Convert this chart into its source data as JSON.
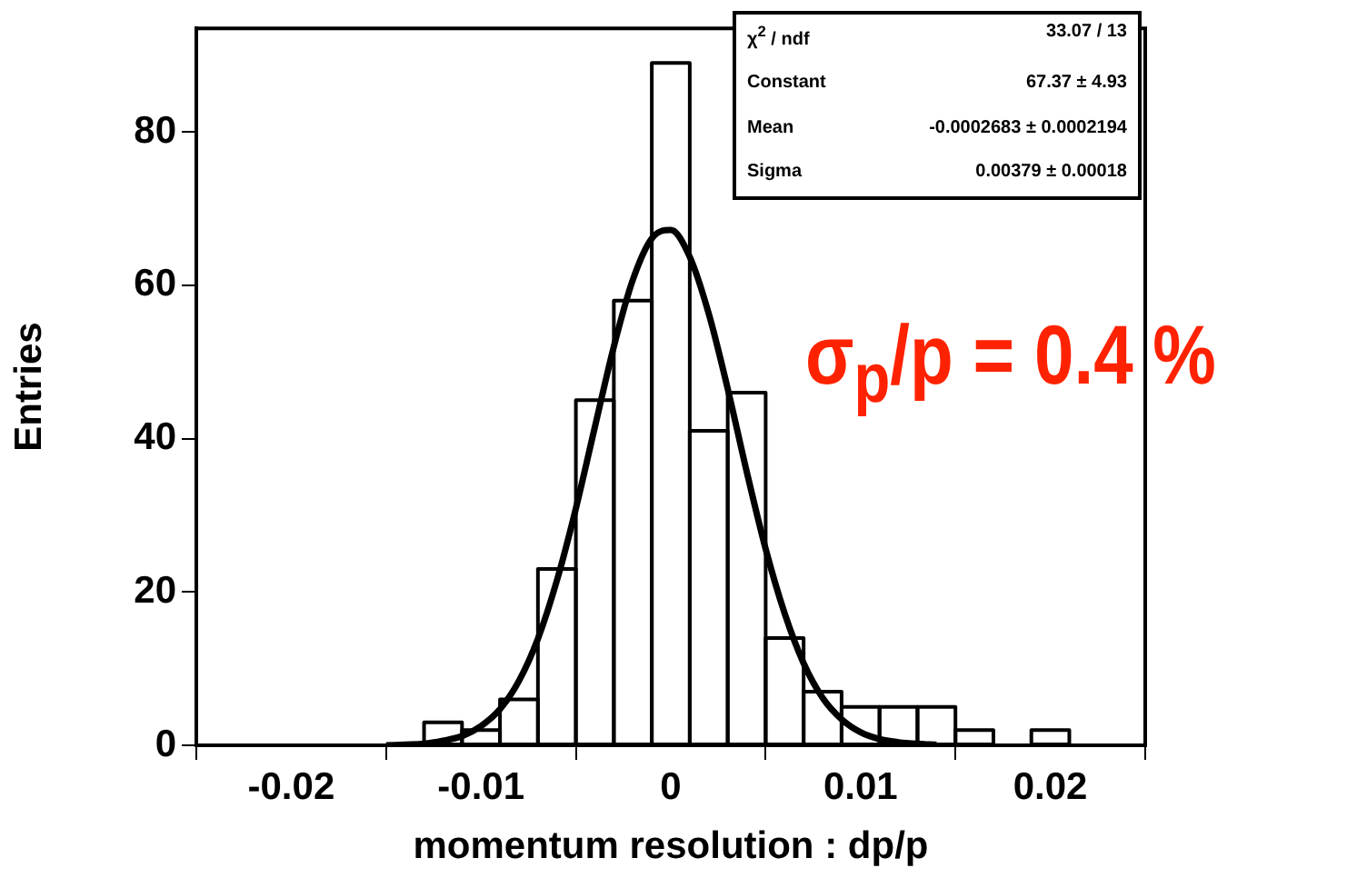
{
  "chart_data": {
    "type": "histogram",
    "xlabel": "momentum resolution : dp/p",
    "ylabel": "Entries",
    "xlim": [
      -0.025,
      0.025
    ],
    "xticks": [
      -0.02,
      -0.01,
      0,
      0.01,
      0.02
    ],
    "ylim": [
      0,
      93.5
    ],
    "yticks": [
      0,
      20,
      40,
      60,
      80
    ],
    "grid": false,
    "legend": false,
    "color": "#000000",
    "bins": [
      -0.025,
      -0.023,
      -0.021,
      -0.019,
      -0.017,
      -0.015,
      -0.013,
      -0.011,
      -0.009,
      -0.007,
      -0.005,
      -0.003,
      -0.001,
      0.001,
      0.003,
      0.005,
      0.007,
      0.009,
      0.011,
      0.013,
      0.015,
      0.017,
      0.019,
      0.021,
      0.023,
      0.025
    ],
    "values": [
      0,
      0,
      0,
      0,
      0,
      0,
      3,
      2,
      6,
      23,
      45,
      58,
      89,
      41,
      46,
      14,
      7,
      5,
      5,
      5,
      2,
      0,
      2,
      0,
      0
    ],
    "series": [
      {
        "type": "line",
        "color": "#000000",
        "x": [
          -0.015,
          -0.014,
          -0.013,
          -0.012,
          -0.011,
          -0.01,
          -0.009,
          -0.008,
          -0.007,
          -0.006,
          -0.005,
          -0.004,
          -0.003,
          -0.002,
          -0.001,
          0,
          0.001,
          0.002,
          0.003,
          0.004,
          0.005,
          0.006,
          0.007,
          0.008,
          0.009,
          0.01,
          0.011,
          0.012,
          0.013,
          0.014
        ],
        "values": [
          0,
          0.1,
          0.2,
          0.6,
          1.2,
          2.5,
          4.7,
          8.4,
          13.9,
          21.5,
          30.9,
          41.5,
          52,
          60.7,
          66.1,
          67.2,
          63.7,
          56.3,
          46.5,
          35.7,
          25.6,
          17.2,
          10.7,
          6.2,
          3.4,
          1.7,
          0.8,
          0.4,
          0.2,
          0.1
        ]
      }
    ],
    "annotations": [
      "χ$^{2}$ / ndf",
      "33.07 / 13",
      "Constant",
      "67.37 ± 4.93",
      "Mean",
      "-0.0002683 ± 0.0002194",
      "Sigma",
      "0.00379 ± 0.00018",
      "σ$_{p}$/p = 0.4 %"
    ]
  }
}
